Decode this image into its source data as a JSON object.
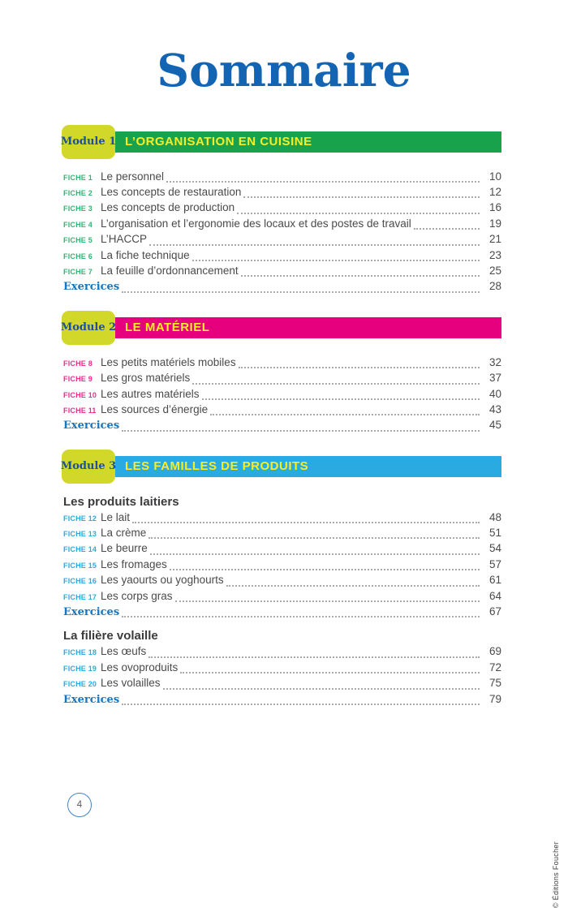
{
  "title": "Sommaire",
  "theme": {
    "title_color": "#1464b4",
    "badge_color": "#d2d829",
    "badge_text_color": "#1d4f9e",
    "bar_text_color": "#f9ed26",
    "exercices_color": "#1b75bb",
    "text_color": "#4a4a4c",
    "dots_color": "#a9a9a9",
    "subheading_color": "#3b3b3d"
  },
  "modules": [
    {
      "badge": "Module 1",
      "title": "L’ORGANISATION EN CUISINE",
      "bar_color": "#18a24c",
      "fiche_color": "#35b473",
      "sections": [
        {
          "heading": "",
          "items": [
            {
              "label": "FICHE 1",
              "title": "Le personnel",
              "page": "10"
            },
            {
              "label": "FICHE 2",
              "title": "Les concepts de restauration",
              "page": "12"
            },
            {
              "label": "FICHE 3",
              "title": "Les concepts de production",
              "page": "16"
            },
            {
              "label": "FICHE 4",
              "title": "L’organisation et l’ergonomie des locaux et des postes de travail",
              "page": "19"
            },
            {
              "label": "FICHE 5",
              "title": "L’HACCP",
              "page": "21"
            },
            {
              "label": "FICHE 6",
              "title": "La fiche technique",
              "page": "23"
            },
            {
              "label": "FICHE 7",
              "title": "La feuille d’ordonnancement",
              "page": "25"
            }
          ],
          "exercices": {
            "label": "Exercices",
            "page": "28"
          }
        }
      ]
    },
    {
      "badge": "Module 2",
      "title": "LE MATÉRIEL",
      "bar_color": "#e6007e",
      "fiche_color": "#ee2a8d",
      "sections": [
        {
          "heading": "",
          "items": [
            {
              "label": "FICHE 8",
              "title": "Les petits matériels mobiles",
              "page": "32"
            },
            {
              "label": "FICHE 9",
              "title": "Les gros matériels",
              "page": "37"
            },
            {
              "label": "FICHE 10",
              "title": "Les autres matériels",
              "page": "40"
            },
            {
              "label": "FICHE 11",
              "title": "Les sources d’énergie",
              "page": "43"
            }
          ],
          "exercices": {
            "label": "Exercices",
            "page": "45"
          }
        }
      ]
    },
    {
      "badge": "Module 3",
      "title": "LES FAMILLES DE PRODUITS",
      "bar_color": "#29abe2",
      "fiche_color": "#29abe2",
      "sections": [
        {
          "heading": "Les produits laitiers",
          "items": [
            {
              "label": "FICHE 12",
              "title": "Le lait",
              "page": "48"
            },
            {
              "label": "FICHE 13",
              "title": "La crème",
              "page": "51"
            },
            {
              "label": "FICHE 14",
              "title": "Le beurre",
              "page": "54"
            },
            {
              "label": "FICHE 15",
              "title": "Les fromages",
              "page": "57"
            },
            {
              "label": "FICHE 16",
              "title": "Les yaourts ou yoghourts",
              "page": "61"
            },
            {
              "label": "FICHE 17",
              "title": "Les corps gras",
              "page": "64"
            }
          ],
          "exercices": {
            "label": "Exercices",
            "page": "67"
          }
        },
        {
          "heading": "La filière volaille",
          "items": [
            {
              "label": "FICHE 18",
              "title": "Les œufs",
              "page": "69"
            },
            {
              "label": "FICHE 19",
              "title": "Les ovoproduits",
              "page": "72"
            },
            {
              "label": "FICHE 20",
              "title": "Les volailles",
              "page": "75"
            }
          ],
          "exercices": {
            "label": "Exercices",
            "page": "79"
          }
        }
      ]
    }
  ],
  "footer": {
    "page_number": "4",
    "copyright": "© Éditions Foucher"
  }
}
